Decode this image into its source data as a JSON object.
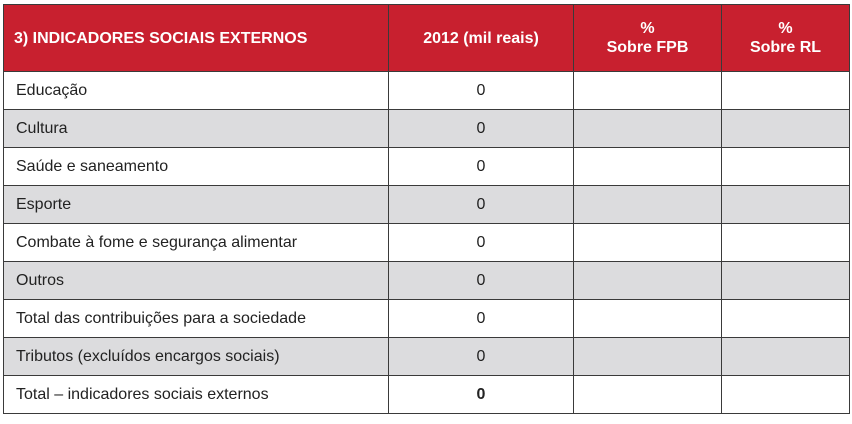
{
  "table": {
    "headers": {
      "col1": "3) INDICADORES SOCIAIS EXTERNOS",
      "col2": "2012 (mil reais)",
      "col3_line1": "%",
      "col3_line2": "Sobre FPB",
      "col4_line1": "%",
      "col4_line2": "Sobre RL"
    },
    "rows": [
      {
        "label": "Educação",
        "value": "0",
        "pct_fpb": "",
        "pct_rl": ""
      },
      {
        "label": "Cultura",
        "value": "0",
        "pct_fpb": "",
        "pct_rl": ""
      },
      {
        "label": "Saúde e saneamento",
        "value": "0",
        "pct_fpb": "",
        "pct_rl": ""
      },
      {
        "label": "Esporte",
        "value": "0",
        "pct_fpb": "",
        "pct_rl": ""
      },
      {
        "label": "Combate à fome e segurança alimentar",
        "value": "0",
        "pct_fpb": "",
        "pct_rl": ""
      },
      {
        "label": "Outros",
        "value": "0",
        "pct_fpb": "",
        "pct_rl": ""
      },
      {
        "label": "Total das contribuições para a sociedade",
        "value": "0",
        "pct_fpb": "",
        "pct_rl": ""
      },
      {
        "label": "Tributos (excluídos encargos sociais)",
        "value": "0",
        "pct_fpb": "",
        "pct_rl": ""
      },
      {
        "label": "Total – indicadores sociais externos",
        "value": "0",
        "pct_fpb": "",
        "pct_rl": ""
      }
    ]
  },
  "colors": {
    "header_bg": "#c8202f",
    "header_text": "#ffffff",
    "shaded_row": "#dcdcde",
    "border": "#3a3a3a"
  }
}
